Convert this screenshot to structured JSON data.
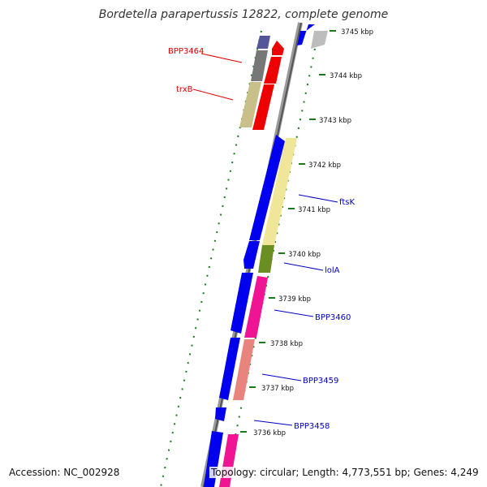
{
  "title": "Bordetella parapertussis 12822, complete genome",
  "accession_text": "Accession: NC_002928",
  "summary_text": "Topology: circular; Length: 4,773,551 bp; Genes: 4,249",
  "scale_labels": [
    "3745 kbp",
    "3744 kbp",
    "3743 kbp",
    "3742 kbp",
    "3741 kbp",
    "3740 kbp",
    "3739 kbp",
    "3738 kbp",
    "3737 kbp",
    "3736 kbp"
  ],
  "gene_labels": [
    {
      "text": "BPP3464",
      "color": "#e00000"
    },
    {
      "text": "trxB",
      "color": "#e00000"
    },
    {
      "text": "ftsK",
      "color": "#0000c0"
    },
    {
      "text": "lolA",
      "color": "#0000c0"
    },
    {
      "text": "BPP3460",
      "color": "#0000c0"
    },
    {
      "text": "BPP3459",
      "color": "#0000c0"
    },
    {
      "text": "BPP3458",
      "color": "#0000c0"
    }
  ],
  "colors": {
    "backbone": "#888888",
    "dots": "#1a7a1a",
    "blue_feature": "#0000ee",
    "red_feature": "#ee0000",
    "gray_feature": "#777777",
    "purple_feature": "#55559a",
    "khaki_feature": "#c8c088",
    "yellow_feature": "#f0e69a",
    "olive_feature": "#6b8e23",
    "magenta_feature": "#ee1493",
    "salmon_feature": "#e8837e"
  }
}
